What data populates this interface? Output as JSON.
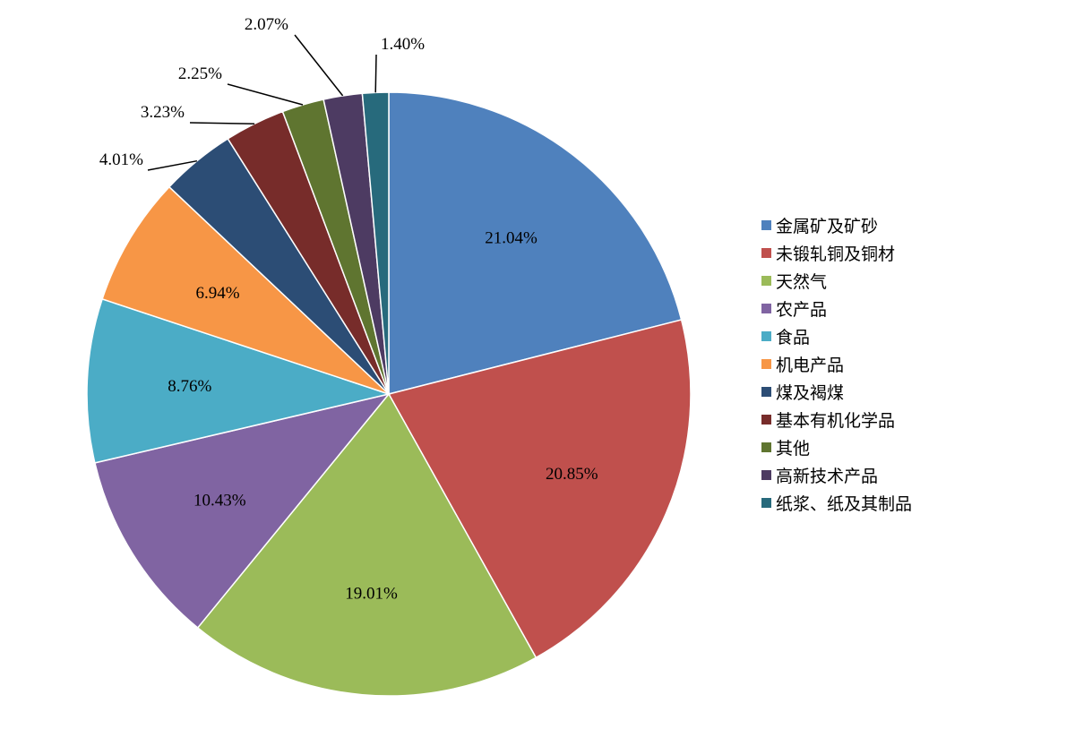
{
  "chart_data": {
    "type": "pie",
    "title": "",
    "legend_position": "right",
    "slices": [
      {
        "label": "金属矿及矿砂",
        "value": 21.04,
        "display": "21.04%",
        "color": "#4F81BD"
      },
      {
        "label": "未锻轧铜及铜材",
        "value": 20.85,
        "display": "20.85%",
        "color": "#C0504D"
      },
      {
        "label": "天然气",
        "value": 19.01,
        "display": "19.01%",
        "color": "#9BBB59"
      },
      {
        "label": "农产品",
        "value": 10.43,
        "display": "10.43%",
        "color": "#8064A2"
      },
      {
        "label": "食品",
        "value": 8.76,
        "display": "8.76%",
        "color": "#4BACC6"
      },
      {
        "label": "机电产品",
        "value": 6.94,
        "display": "6.94%",
        "color": "#F79646"
      },
      {
        "label": "煤及褐煤",
        "value": 4.01,
        "display": "4.01%",
        "color": "#2C4D75"
      },
      {
        "label": "基本有机化学品",
        "value": 3.23,
        "display": "3.23%",
        "color": "#772C2A"
      },
      {
        "label": "其他",
        "value": 2.25,
        "display": "2.25%",
        "color": "#5F7530"
      },
      {
        "label": "高新技术产品",
        "value": 2.07,
        "display": "2.07%",
        "color": "#4D3B62"
      },
      {
        "label": "纸浆、纸及其制品",
        "value": 1.4,
        "display": "1.40%",
        "color": "#276A7C"
      }
    ]
  }
}
